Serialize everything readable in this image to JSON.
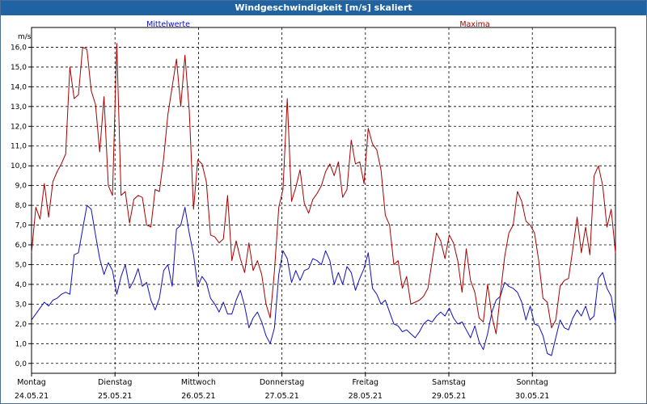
{
  "window": {
    "title": "Windgeschwindigkeit [m/s] skaliert"
  },
  "chart_data": {
    "type": "line",
    "title": "Windgeschwindigkeit [m/s] skaliert",
    "ylabel": "m/s",
    "ylim": [
      -0.5,
      17
    ],
    "yticks": [
      "0,0",
      "1,0",
      "2,0",
      "3,0",
      "4,0",
      "5,0",
      "6,0",
      "7,0",
      "8,0",
      "9,0",
      "10,0",
      "11,0",
      "12,0",
      "13,0",
      "14,0",
      "15,0",
      "16,0"
    ],
    "x_days": [
      {
        "day": "Montag",
        "date": "24.05.21"
      },
      {
        "day": "Dienstag",
        "date": "25.05.21"
      },
      {
        "day": "Mittwoch",
        "date": "26.05.21"
      },
      {
        "day": "Donnerstag",
        "date": "27.05.21"
      },
      {
        "day": "Freitag",
        "date": "28.05.21"
      },
      {
        "day": "Samstag",
        "date": "29.05.21"
      },
      {
        "day": "Sonntag",
        "date": "30.05.21"
      }
    ],
    "grid": true,
    "series": [
      {
        "name": "Mittelwerte",
        "color": "#1010c0",
        "points": [
          [
            0,
            2.2
          ],
          [
            1,
            2.5
          ],
          [
            2,
            2.8
          ],
          [
            3,
            3.1
          ],
          [
            4,
            2.9
          ],
          [
            5,
            3.2
          ],
          [
            6,
            3.3
          ],
          [
            7,
            3.5
          ],
          [
            8,
            3.6
          ],
          [
            9,
            3.5
          ],
          [
            10,
            5.5
          ],
          [
            11,
            5.6
          ],
          [
            12,
            6.8
          ],
          [
            13,
            8.0
          ],
          [
            14,
            7.8
          ],
          [
            15,
            6.5
          ],
          [
            16,
            5.3
          ],
          [
            17,
            4.5
          ],
          [
            18,
            5.1
          ],
          [
            19,
            4.7
          ],
          [
            20,
            3.5
          ],
          [
            21,
            4.4
          ],
          [
            22,
            5.0
          ],
          [
            23,
            3.8
          ],
          [
            24,
            4.2
          ],
          [
            25,
            4.8
          ],
          [
            26,
            3.9
          ],
          [
            27,
            4.1
          ],
          [
            28,
            3.2
          ],
          [
            29,
            2.7
          ],
          [
            30,
            3.3
          ],
          [
            31,
            4.7
          ],
          [
            32,
            5.0
          ],
          [
            33,
            3.9
          ],
          [
            34,
            6.8
          ],
          [
            35,
            7.0
          ],
          [
            36,
            7.9
          ],
          [
            37,
            6.6
          ],
          [
            38,
            5.5
          ],
          [
            39,
            3.9
          ],
          [
            40,
            4.4
          ],
          [
            41,
            4.1
          ],
          [
            42,
            3.3
          ],
          [
            43,
            3.0
          ],
          [
            44,
            2.6
          ],
          [
            45,
            3.1
          ],
          [
            46,
            2.5
          ],
          [
            47,
            2.5
          ],
          [
            48,
            3.2
          ],
          [
            49,
            3.7
          ],
          [
            50,
            2.9
          ],
          [
            51,
            1.8
          ],
          [
            52,
            2.3
          ],
          [
            53,
            2.6
          ],
          [
            54,
            2.1
          ],
          [
            55,
            1.4
          ],
          [
            56,
            1.0
          ],
          [
            57,
            1.8
          ],
          [
            58,
            4.5
          ],
          [
            59,
            5.7
          ],
          [
            60,
            5.3
          ],
          [
            61,
            4.1
          ],
          [
            62,
            4.7
          ],
          [
            63,
            4.2
          ],
          [
            64,
            4.7
          ],
          [
            65,
            4.8
          ],
          [
            66,
            5.3
          ],
          [
            67,
            5.2
          ],
          [
            68,
            5.0
          ],
          [
            69,
            5.7
          ],
          [
            70,
            5.2
          ],
          [
            71,
            4.0
          ],
          [
            72,
            4.6
          ],
          [
            73,
            4.0
          ],
          [
            74,
            4.9
          ],
          [
            75,
            4.6
          ],
          [
            76,
            3.7
          ],
          [
            77,
            4.3
          ],
          [
            78,
            4.8
          ],
          [
            79,
            5.6
          ],
          [
            80,
            3.8
          ],
          [
            81,
            3.5
          ],
          [
            82,
            3.0
          ],
          [
            83,
            3.2
          ],
          [
            84,
            2.6
          ],
          [
            85,
            2.0
          ],
          [
            86,
            1.9
          ],
          [
            87,
            1.6
          ],
          [
            88,
            1.7
          ],
          [
            89,
            1.5
          ],
          [
            90,
            1.3
          ],
          [
            91,
            1.6
          ],
          [
            92,
            2.0
          ],
          [
            93,
            2.2
          ],
          [
            94,
            2.1
          ],
          [
            95,
            2.4
          ],
          [
            96,
            2.6
          ],
          [
            97,
            2.4
          ],
          [
            98,
            2.8
          ],
          [
            99,
            2.3
          ],
          [
            100,
            2.0
          ],
          [
            101,
            2.1
          ],
          [
            102,
            1.7
          ],
          [
            103,
            1.3
          ],
          [
            104,
            1.9
          ],
          [
            105,
            1.1
          ],
          [
            106,
            0.7
          ],
          [
            107,
            1.5
          ],
          [
            108,
            2.6
          ],
          [
            109,
            3.2
          ],
          [
            110,
            3.4
          ],
          [
            111,
            4.1
          ],
          [
            112,
            3.9
          ],
          [
            113,
            3.8
          ],
          [
            114,
            3.6
          ],
          [
            115,
            3.1
          ],
          [
            116,
            2.2
          ],
          [
            117,
            2.9
          ],
          [
            118,
            2.0
          ],
          [
            119,
            1.9
          ],
          [
            120,
            1.4
          ],
          [
            121,
            0.5
          ],
          [
            122,
            0.4
          ],
          [
            123,
            1.3
          ],
          [
            124,
            2.2
          ],
          [
            125,
            1.8
          ],
          [
            126,
            1.7
          ],
          [
            127,
            2.3
          ],
          [
            128,
            2.7
          ],
          [
            129,
            2.4
          ],
          [
            130,
            2.9
          ],
          [
            131,
            2.2
          ],
          [
            132,
            2.4
          ],
          [
            133,
            4.3
          ],
          [
            134,
            4.6
          ],
          [
            135,
            3.8
          ],
          [
            136,
            3.4
          ],
          [
            137,
            2.1
          ]
        ]
      },
      {
        "name": "Maxima",
        "color": "#a80000",
        "points": [
          [
            0,
            5.6
          ],
          [
            1,
            7.9
          ],
          [
            2,
            7.3
          ],
          [
            3,
            9.1
          ],
          [
            4,
            7.4
          ],
          [
            5,
            9.2
          ],
          [
            6,
            9.7
          ],
          [
            7,
            10.1
          ],
          [
            8,
            10.6
          ],
          [
            9,
            15.0
          ],
          [
            10,
            13.4
          ],
          [
            11,
            13.6
          ],
          [
            12,
            16.0
          ],
          [
            13,
            15.9
          ],
          [
            14,
            13.8
          ],
          [
            15,
            13.1
          ],
          [
            16,
            10.7
          ],
          [
            17,
            13.5
          ],
          [
            18,
            9.0
          ],
          [
            19,
            8.5
          ],
          [
            20,
            16.2
          ],
          [
            21,
            8.5
          ],
          [
            22,
            8.7
          ],
          [
            23,
            7.1
          ],
          [
            24,
            8.3
          ],
          [
            25,
            8.5
          ],
          [
            26,
            8.4
          ],
          [
            27,
            7.0
          ],
          [
            28,
            6.9
          ],
          [
            29,
            8.8
          ],
          [
            30,
            8.7
          ],
          [
            31,
            10.4
          ],
          [
            32,
            12.6
          ],
          [
            33,
            14.0
          ],
          [
            34,
            15.4
          ],
          [
            35,
            13.0
          ],
          [
            36,
            15.6
          ],
          [
            37,
            12.8
          ],
          [
            38,
            7.8
          ],
          [
            39,
            10.3
          ],
          [
            40,
            10.1
          ],
          [
            41,
            9.2
          ],
          [
            42,
            6.5
          ],
          [
            43,
            6.4
          ],
          [
            44,
            6.1
          ],
          [
            45,
            6.3
          ],
          [
            46,
            8.5
          ],
          [
            47,
            5.2
          ],
          [
            48,
            6.2
          ],
          [
            49,
            5.3
          ],
          [
            50,
            4.6
          ],
          [
            51,
            6.1
          ],
          [
            52,
            4.7
          ],
          [
            53,
            5.2
          ],
          [
            54,
            4.5
          ],
          [
            55,
            3.0
          ],
          [
            56,
            2.3
          ],
          [
            57,
            4.7
          ],
          [
            58,
            7.9
          ],
          [
            59,
            8.8
          ],
          [
            60,
            13.4
          ],
          [
            61,
            8.2
          ],
          [
            62,
            8.9
          ],
          [
            63,
            9.8
          ],
          [
            64,
            8.1
          ],
          [
            65,
            7.6
          ],
          [
            66,
            8.3
          ],
          [
            67,
            8.6
          ],
          [
            68,
            9.0
          ],
          [
            69,
            9.7
          ],
          [
            70,
            10.1
          ],
          [
            71,
            9.5
          ],
          [
            72,
            10.2
          ],
          [
            73,
            8.4
          ],
          [
            74,
            8.8
          ],
          [
            75,
            11.3
          ],
          [
            76,
            10.1
          ],
          [
            77,
            10.2
          ],
          [
            78,
            9.1
          ],
          [
            79,
            11.9
          ],
          [
            80,
            11.1
          ],
          [
            81,
            10.8
          ],
          [
            82,
            9.8
          ],
          [
            83,
            7.5
          ],
          [
            84,
            7.0
          ],
          [
            85,
            5.0
          ],
          [
            86,
            5.2
          ],
          [
            87,
            3.8
          ],
          [
            88,
            4.4
          ],
          [
            89,
            3.0
          ],
          [
            90,
            3.1
          ],
          [
            91,
            3.2
          ],
          [
            92,
            3.4
          ],
          [
            93,
            3.8
          ],
          [
            94,
            5.2
          ],
          [
            95,
            6.6
          ],
          [
            96,
            6.2
          ],
          [
            97,
            5.3
          ],
          [
            98,
            6.5
          ],
          [
            99,
            6.1
          ],
          [
            100,
            5.2
          ],
          [
            101,
            3.6
          ],
          [
            102,
            5.8
          ],
          [
            103,
            4.2
          ],
          [
            104,
            3.6
          ],
          [
            105,
            2.3
          ],
          [
            106,
            2.1
          ],
          [
            107,
            4.0
          ],
          [
            108,
            2.4
          ],
          [
            109,
            1.5
          ],
          [
            110,
            3.5
          ],
          [
            111,
            5.4
          ],
          [
            112,
            6.6
          ],
          [
            113,
            7.0
          ],
          [
            114,
            8.7
          ],
          [
            115,
            8.2
          ],
          [
            116,
            7.2
          ],
          [
            117,
            7.0
          ],
          [
            118,
            6.6
          ],
          [
            119,
            5.2
          ],
          [
            120,
            3.3
          ],
          [
            121,
            3.1
          ],
          [
            122,
            1.8
          ],
          [
            123,
            2.2
          ],
          [
            124,
            3.9
          ],
          [
            125,
            4.2
          ],
          [
            126,
            4.3
          ],
          [
            127,
            5.8
          ],
          [
            128,
            7.4
          ],
          [
            129,
            5.6
          ],
          [
            130,
            6.9
          ],
          [
            131,
            5.5
          ],
          [
            132,
            9.5
          ],
          [
            133,
            10.0
          ],
          [
            134,
            9.0
          ],
          [
            135,
            6.9
          ],
          [
            136,
            7.8
          ],
          [
            137,
            5.6
          ]
        ]
      }
    ]
  }
}
